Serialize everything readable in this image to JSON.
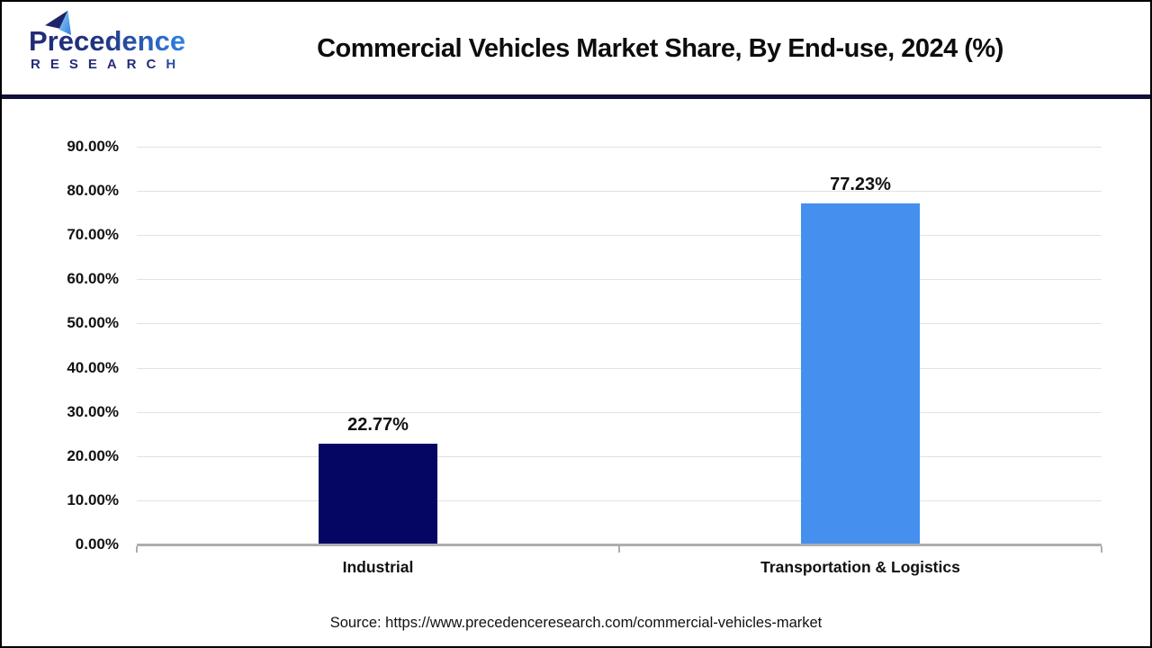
{
  "header": {
    "logo": {
      "line1": "Precedence",
      "line2": "RESEARCH"
    },
    "title": "Commercial Vehicles Market Share, By End-use, 2024 (%)"
  },
  "chart_data": {
    "type": "bar",
    "title": "Commercial Vehicles Market Share, By End-use, 2024 (%)",
    "categories": [
      "Industrial",
      "Transportation & Logistics"
    ],
    "values": [
      22.77,
      77.23
    ],
    "value_labels": [
      "22.77%",
      "77.23%"
    ],
    "bar_colors": [
      "#050563",
      "#4590ee"
    ],
    "xlabel": "",
    "ylabel": "",
    "ylim": [
      0,
      90
    ],
    "ytick_interval": 10,
    "ytick_labels": [
      "0.00%",
      "10.00%",
      "20.00%",
      "30.00%",
      "40.00%",
      "50.00%",
      "60.00%",
      "70.00%",
      "80.00%",
      "90.00%"
    ],
    "grid": true,
    "legend": "none",
    "gridline_color": "#e2e2e2",
    "axis_color": "#aeaeae"
  },
  "footer": {
    "source_text": "Source: https://www.precedenceresearch.com/commercial-vehicles-market"
  },
  "colors": {
    "header_divider": "#10103a",
    "page_border": "#000000",
    "title_text": "#0d0d0d",
    "logo_navy": "#232b78",
    "logo_blue": "#2f7de0"
  }
}
